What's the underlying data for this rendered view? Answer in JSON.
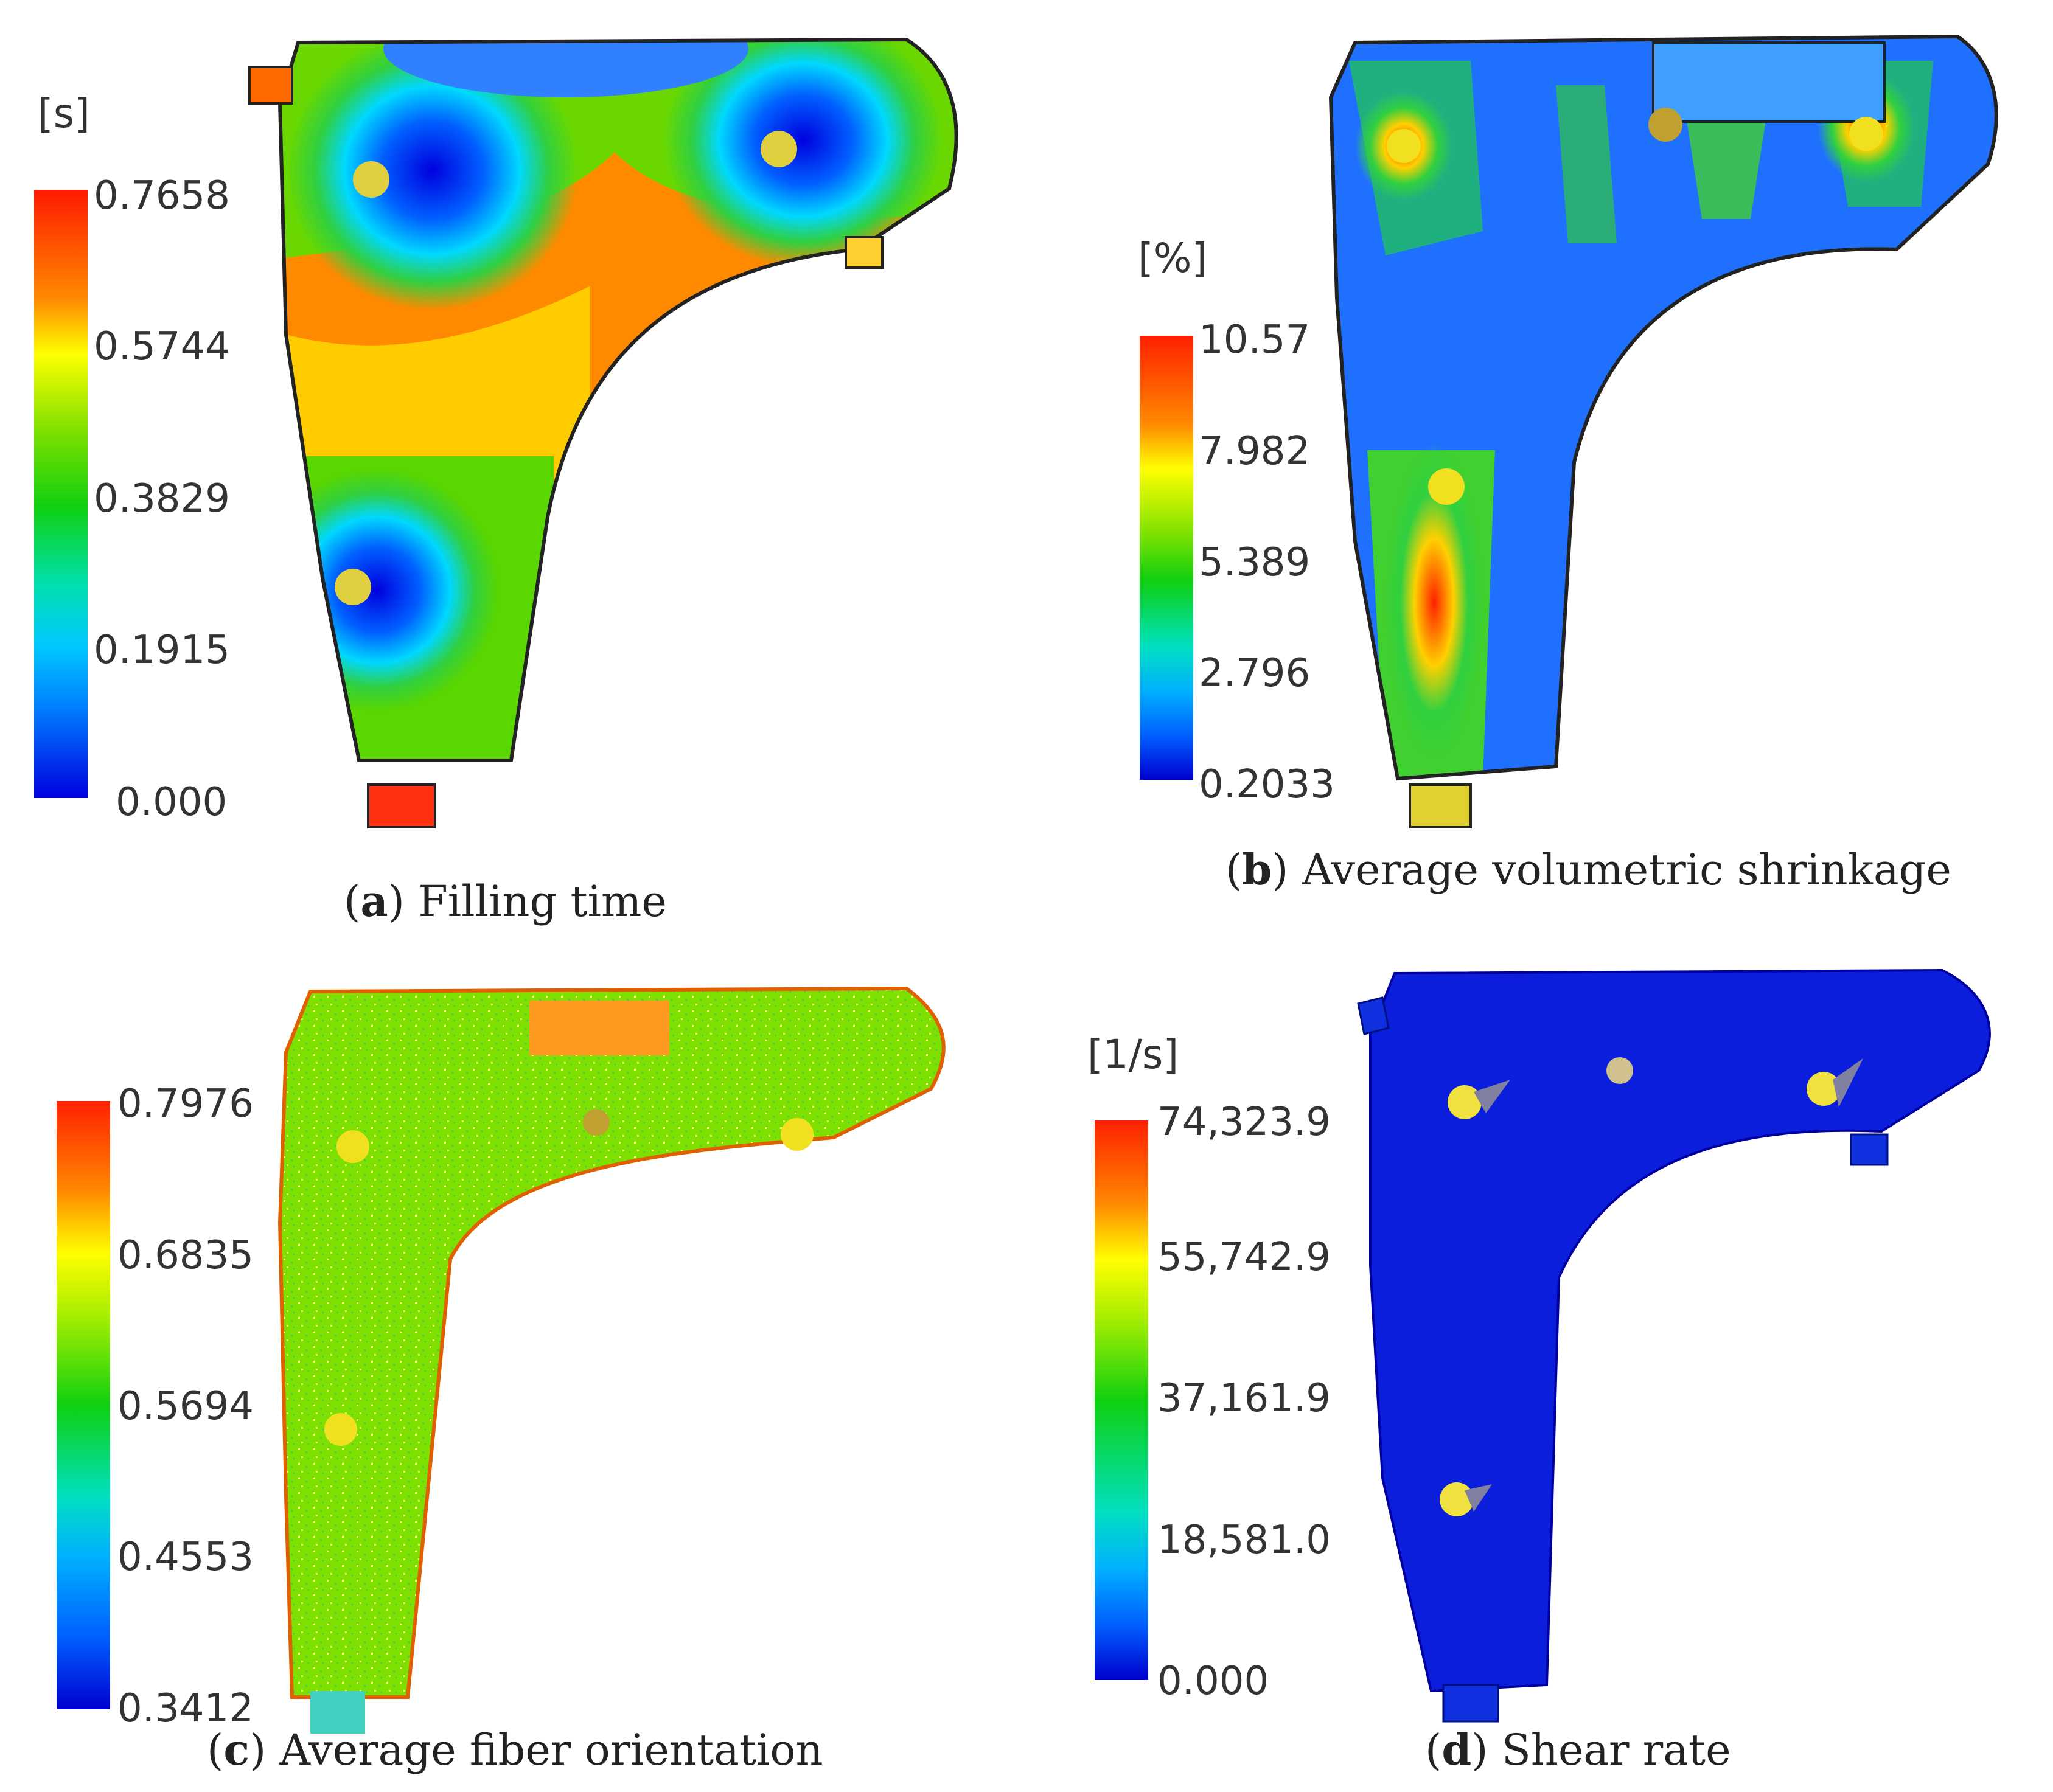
{
  "panels": [
    {
      "letter": "a",
      "caption": "Filling time",
      "unit": "[s]",
      "ticks": [
        "0.7658",
        "0.5744",
        "0.3829",
        "0.1915",
        "0.000"
      ]
    },
    {
      "letter": "b",
      "caption": "Average volumetric shrinkage",
      "unit": "[%]",
      "ticks": [
        "10.57",
        "7.982",
        "5.389",
        "2.796",
        "0.2033"
      ]
    },
    {
      "letter": "c",
      "caption": "Average fiber orientation",
      "unit": "",
      "ticks": [
        "0.7976",
        "0.6835",
        "0.5694",
        "0.4553",
        "0.3412"
      ]
    },
    {
      "letter": "d",
      "caption": "Shear rate",
      "unit": "[1/s]",
      "ticks": [
        "74,323.9",
        "55,742.9",
        "37,161.9",
        "18,581.0",
        "0.000"
      ]
    }
  ],
  "colors": {
    "scale": [
      "#ff1a00",
      "#ff8a00",
      "#ffff00",
      "#5ad600",
      "#10d010",
      "#00e0e0",
      "#0080ff",
      "#0000e0"
    ],
    "gate": "#e8e030"
  }
}
